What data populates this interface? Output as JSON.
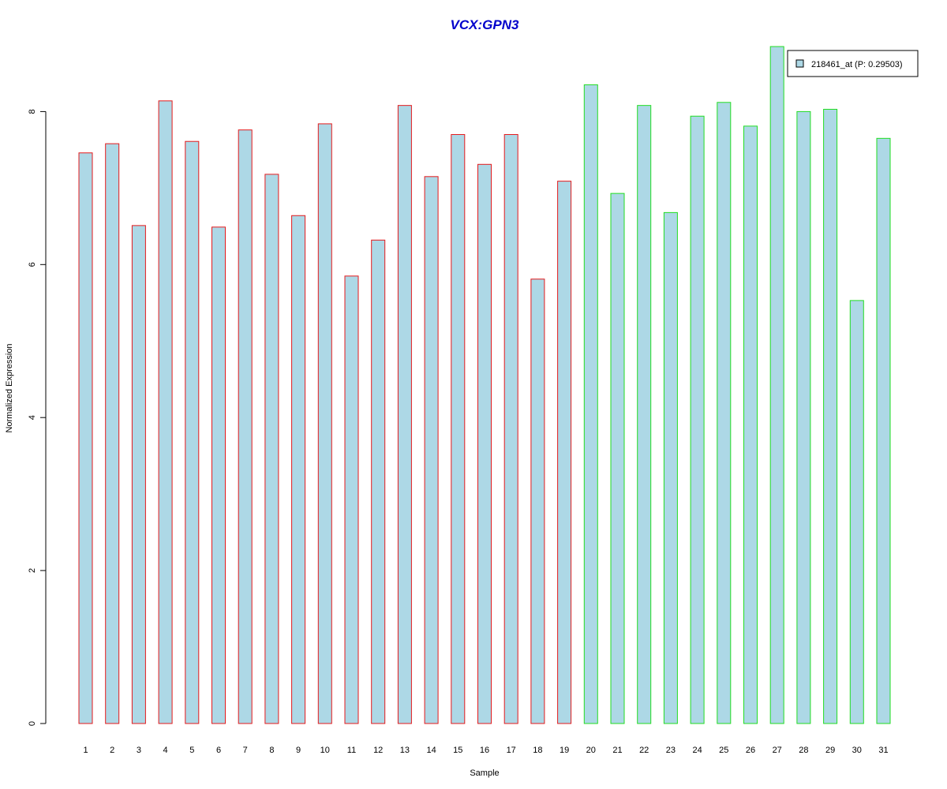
{
  "chart_data": {
    "type": "bar",
    "title": "VCX:GPN3",
    "xlabel": "Sample",
    "ylabel": "Normalized Expression",
    "ylim": [
      0,
      8.85
    ],
    "y_ticks": [
      0,
      2,
      4,
      6,
      8
    ],
    "categories": [
      "1",
      "2",
      "3",
      "4",
      "5",
      "6",
      "7",
      "8",
      "9",
      "10",
      "11",
      "12",
      "13",
      "14",
      "15",
      "16",
      "17",
      "18",
      "19",
      "20",
      "21",
      "22",
      "23",
      "24",
      "25",
      "26",
      "27",
      "28",
      "29",
      "30",
      "31"
    ],
    "series": [
      {
        "name": "218461_at (P: 0.29503)",
        "values": [
          7.46,
          7.58,
          6.51,
          8.14,
          7.61,
          6.49,
          7.76,
          7.18,
          6.64,
          7.84,
          5.85,
          6.32,
          8.08,
          7.15,
          7.7,
          7.31,
          7.7,
          5.81,
          7.09,
          8.35,
          6.93,
          8.08,
          6.68,
          7.94,
          8.12,
          7.81,
          8.85,
          8.0,
          8.03,
          5.53,
          7.65
        ]
      }
    ],
    "group_border_colors": [
      "#e41a1c",
      "#e41a1c",
      "#e41a1c",
      "#e41a1c",
      "#e41a1c",
      "#e41a1c",
      "#e41a1c",
      "#e41a1c",
      "#e41a1c",
      "#e41a1c",
      "#e41a1c",
      "#e41a1c",
      "#e41a1c",
      "#e41a1c",
      "#e41a1c",
      "#e41a1c",
      "#e41a1c",
      "#e41a1c",
      "#e41a1c",
      "#22dd22",
      "#22dd22",
      "#22dd22",
      "#22dd22",
      "#22dd22",
      "#22dd22",
      "#22dd22",
      "#22dd22",
      "#22dd22",
      "#22dd22",
      "#22dd22",
      "#22dd22"
    ],
    "bar_fill": "#add8e6",
    "title_color": "#0000cc",
    "legend": {
      "label": "218461_at (P: 0.29503)",
      "position": "top-right"
    },
    "grid": false
  }
}
